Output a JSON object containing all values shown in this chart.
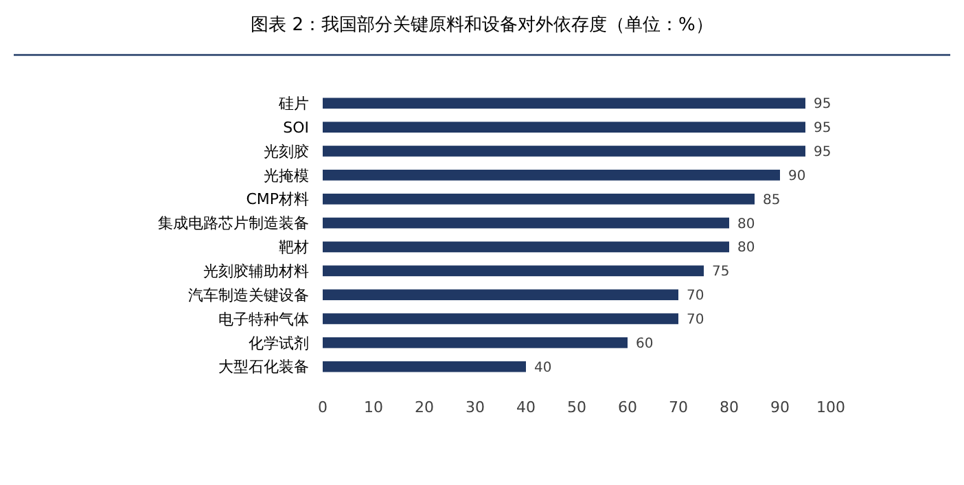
{
  "chart_data": {
    "type": "bar",
    "orientation": "horizontal",
    "title": "图表 2：我国部分关键原料和设备对外依存度（单位：%）",
    "categories": [
      "硅片",
      "SOI",
      "光刻胶",
      "光掩模",
      "CMP材料",
      "集成电路芯片制造装备",
      "靶材",
      "光刻胶辅助材料",
      "汽车制造关键设备",
      "电子特种气体",
      "化学试剂",
      "大型石化装备"
    ],
    "values": [
      95,
      95,
      95,
      90,
      85,
      80,
      80,
      75,
      70,
      70,
      60,
      40
    ],
    "color": "#203864",
    "xlim": [
      0,
      100
    ],
    "xticks": [
      0,
      10,
      20,
      30,
      40,
      50,
      60,
      70,
      80,
      90,
      100
    ],
    "data_labels": true,
    "grid": false
  }
}
